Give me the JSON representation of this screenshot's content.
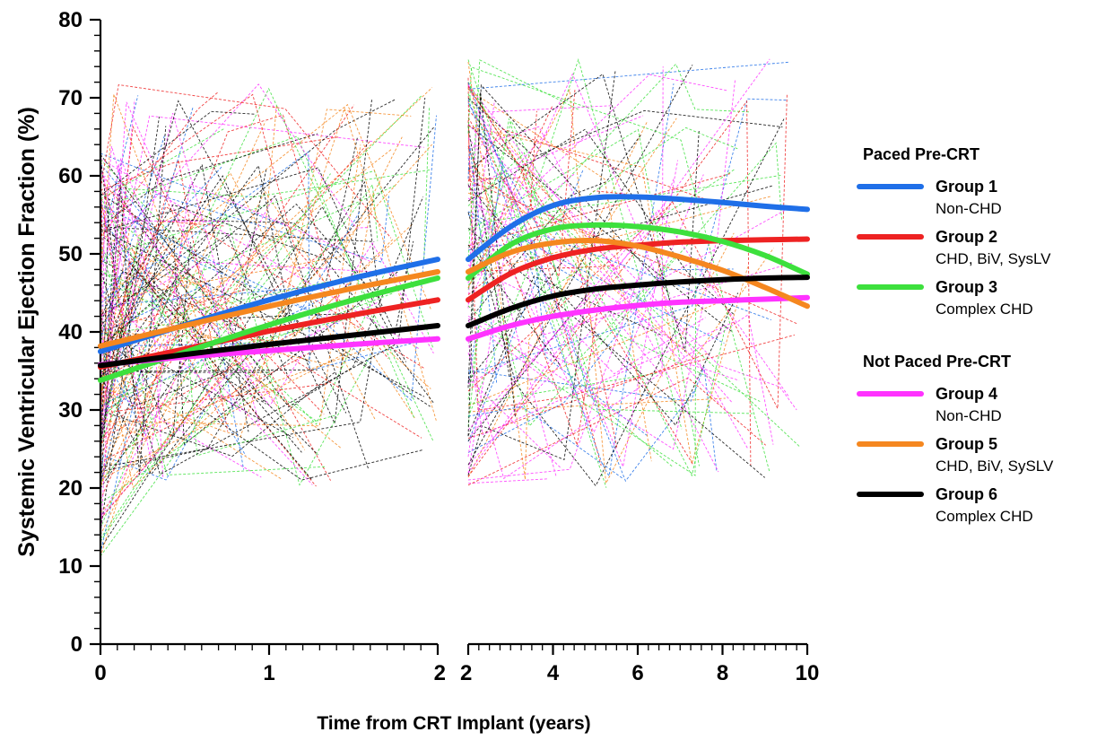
{
  "chart_data": {
    "type": "line",
    "title": "",
    "ylabel": "Systemic Ventricular Ejection Fraction (%)",
    "xlabel": "Time from CRT Implant (years)",
    "ylim": [
      0,
      80
    ],
    "y_ticks": [
      "0",
      "10",
      "20",
      "30",
      "40",
      "50",
      "60",
      "70",
      "80"
    ],
    "panels": [
      {
        "name": "early",
        "xlim": [
          0,
          2
        ],
        "x_ticks": [
          "0",
          "1",
          "2"
        ]
      },
      {
        "name": "late",
        "xlim": [
          2,
          10
        ],
        "x_ticks": [
          "2",
          "4",
          "6",
          "8",
          "10"
        ]
      }
    ],
    "grid": false,
    "legend_position": "right",
    "legend_groups": [
      {
        "heading": "Paced Pre-CRT",
        "entries": [
          0,
          1,
          2
        ]
      },
      {
        "heading": "Not Paced Pre-CRT",
        "entries": [
          3,
          4,
          5
        ]
      }
    ],
    "series": [
      {
        "name": "Group 1",
        "description": "Non-CHD",
        "color": "#1f6fe8",
        "early": {
          "x": [
            0,
            0.5,
            1,
            1.5,
            2
          ],
          "y": [
            37.5,
            40.9,
            44.1,
            46.9,
            49.3
          ]
        },
        "late": {
          "x": [
            2,
            3,
            4,
            5,
            6,
            7,
            8,
            9,
            10
          ],
          "y": [
            49.3,
            53.5,
            56.2,
            57.2,
            57.3,
            57.0,
            56.6,
            56.1,
            55.7
          ]
        }
      },
      {
        "name": "Group 2",
        "description": "CHD, BiV, SysLV",
        "color": "#ee2222",
        "early": {
          "x": [
            0,
            0.5,
            1,
            1.5,
            2
          ],
          "y": [
            35.5,
            37.8,
            40.1,
            42.2,
            44.1
          ]
        },
        "late": {
          "x": [
            2,
            3,
            4,
            5,
            6,
            7,
            8,
            9,
            10
          ],
          "y": [
            44.1,
            47.5,
            49.5,
            50.6,
            51.1,
            51.5,
            51.7,
            51.8,
            51.9
          ]
        }
      },
      {
        "name": "Group 3",
        "description": "Complex CHD",
        "color": "#3de03d",
        "early": {
          "x": [
            0,
            0.5,
            1,
            1.5,
            2
          ],
          "y": [
            33.8,
            37.4,
            40.9,
            44.1,
            46.9
          ]
        },
        "late": {
          "x": [
            2,
            3,
            4,
            5,
            6,
            7,
            8,
            9,
            10
          ],
          "y": [
            46.9,
            51.2,
            53.2,
            53.7,
            53.5,
            52.8,
            51.6,
            49.8,
            47.4
          ]
        }
      },
      {
        "name": "Group 4",
        "description": "Non-CHD",
        "color": "#ff33ff",
        "early": {
          "x": [
            0,
            0.5,
            1,
            1.5,
            2
          ],
          "y": [
            35.8,
            36.8,
            37.6,
            38.4,
            39.1
          ]
        },
        "late": {
          "x": [
            2,
            3,
            4,
            5,
            6,
            7,
            8,
            9,
            10
          ],
          "y": [
            39.1,
            40.8,
            42.0,
            42.8,
            43.4,
            43.8,
            44.0,
            44.2,
            44.4
          ]
        }
      },
      {
        "name": "Group 5",
        "description": "CHD, BiV, SySLV",
        "color": "#f5871f",
        "early": {
          "x": [
            0,
            0.5,
            1,
            1.5,
            2
          ],
          "y": [
            38.2,
            40.8,
            43.3,
            45.6,
            47.7
          ]
        },
        "late": {
          "x": [
            2,
            3,
            4,
            5,
            6,
            7,
            8,
            9,
            10
          ],
          "y": [
            47.7,
            50.2,
            51.4,
            51.7,
            51.0,
            49.6,
            47.9,
            45.7,
            43.3
          ]
        }
      },
      {
        "name": "Group 6",
        "description": "Complex CHD",
        "color": "#000000",
        "early": {
          "x": [
            0,
            0.5,
            1,
            1.5,
            2
          ],
          "y": [
            35.7,
            37.1,
            38.4,
            39.6,
            40.8
          ]
        },
        "late": {
          "x": [
            2,
            3,
            4,
            5,
            6,
            7,
            8,
            9,
            10
          ],
          "y": [
            40.8,
            43.0,
            44.6,
            45.5,
            46.0,
            46.4,
            46.7,
            46.9,
            47.0
          ]
        }
      }
    ]
  }
}
